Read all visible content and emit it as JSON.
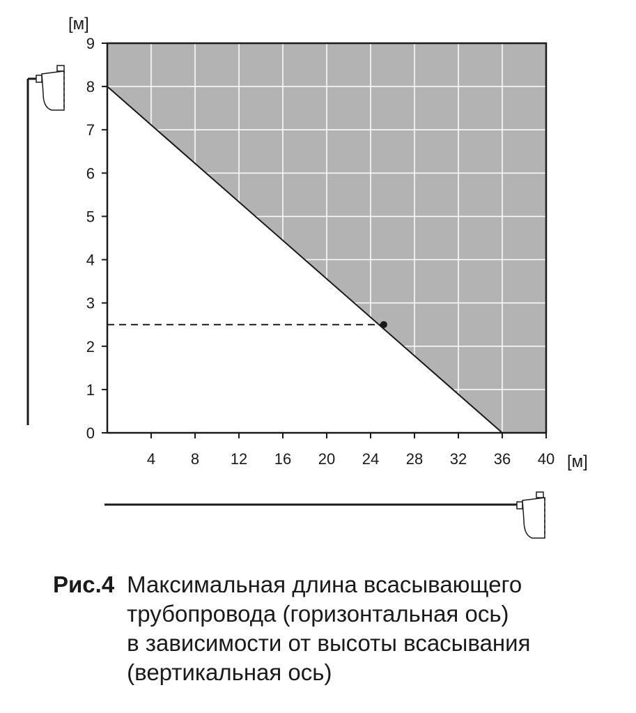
{
  "chart_data": {
    "type": "area",
    "x_unit": "[м]",
    "y_unit": "[м]",
    "xlim": [
      0,
      40
    ],
    "ylim": [
      0,
      9
    ],
    "x_ticks": [
      4,
      8,
      12,
      16,
      20,
      24,
      28,
      32,
      36,
      40
    ],
    "y_ticks": [
      0,
      1,
      2,
      3,
      4,
      5,
      6,
      7,
      8,
      9
    ],
    "grid": true,
    "boundary_line": {
      "x": [
        0,
        36
      ],
      "y": [
        8,
        0
      ]
    },
    "shaded_region": "above boundary line",
    "example_point": {
      "x": 25.2,
      "y": 2.5
    },
    "colors": {
      "shade": "#b3b3b3",
      "grid": "#ffffff",
      "line": "#1a1a1a"
    }
  },
  "caption": {
    "figure_label": "Рис.4",
    "lines": [
      "Максимальная длина всасывающего",
      "трубопровода (горизонтальная ось)",
      "в зависимости от высоты всасывания",
      "(вертикальная ось)"
    ]
  },
  "icons": {
    "vertical_pump": "pump-icon",
    "horizontal_pump": "pump-icon"
  }
}
